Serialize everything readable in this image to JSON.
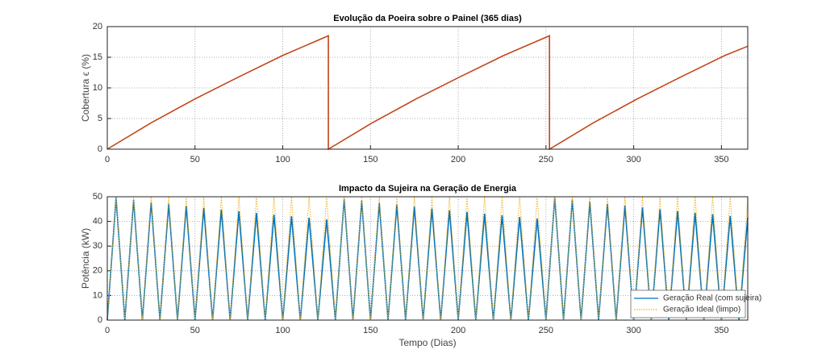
{
  "chart_data": [
    {
      "type": "line",
      "title": "Evolução da Poeira sobre o Painel (365 dias)",
      "y_label": "Cobertura ϵ (%)",
      "x": [
        0,
        25,
        50,
        75,
        100,
        126,
        126,
        151,
        176,
        201,
        226,
        252,
        252,
        277,
        302,
        327,
        352,
        365
      ],
      "series": [
        {
          "color": "#c1461b",
          "values": [
            0,
            4.3,
            8.2,
            11.8,
            15.3,
            18.5,
            0,
            4.3,
            8.2,
            11.8,
            15.3,
            18.5,
            0,
            4.3,
            8.2,
            11.8,
            15.3,
            16.8
          ]
        }
      ],
      "xlim": [
        0,
        365
      ],
      "xticks": [
        0,
        50,
        100,
        150,
        200,
        250,
        300,
        350
      ],
      "ylim": [
        0,
        20
      ],
      "yticks": [
        0,
        5,
        10,
        15,
        20
      ],
      "grid": true
    },
    {
      "type": "line",
      "title": "Impacto da Sujeira na Geração de Energia",
      "y_label": "Potência (kW)",
      "x_label": "Tempo (Dias)",
      "x": [
        0,
        5,
        10,
        15,
        20,
        25,
        30,
        35,
        40,
        45,
        50,
        55,
        60,
        65,
        70,
        75,
        80,
        85,
        90,
        95,
        100,
        105,
        110,
        115,
        120,
        125,
        130,
        135,
        140,
        145,
        150,
        155,
        160,
        165,
        170,
        175,
        180,
        185,
        190,
        195,
        200,
        205,
        210,
        215,
        220,
        225,
        230,
        235,
        240,
        245,
        250,
        255,
        260,
        265,
        270,
        275,
        280,
        285,
        290,
        295,
        300,
        305,
        310,
        315,
        320,
        325,
        330,
        335,
        340,
        345,
        350,
        355,
        360,
        365
      ],
      "series": [
        {
          "name": "Geração Real (com sujeira)",
          "color": "#0072bd",
          "dash": false,
          "values": [
            0,
            49.6,
            0,
            48.7,
            0,
            47.9,
            0,
            47.1,
            0,
            46.3,
            0,
            45.5,
            0,
            44.8,
            0,
            44.1,
            0,
            43.4,
            0,
            42.7,
            0,
            42.1,
            0,
            41.5,
            0,
            40.8,
            0,
            49.2,
            0,
            48.4,
            0,
            47.5,
            0,
            46.7,
            0,
            46.0,
            0,
            45.2,
            0,
            44.5,
            0,
            43.8,
            0,
            43.1,
            0,
            42.5,
            0,
            41.8,
            0,
            41.2,
            0,
            49.7,
            0,
            48.9,
            0,
            48.0,
            0,
            47.2,
            0,
            46.4,
            0,
            45.7,
            0,
            44.9,
            0,
            44.2,
            0,
            43.5,
            0,
            42.9,
            0,
            42.2,
            0,
            41.6
          ]
        },
        {
          "name": "Geração Ideal (limpo)",
          "color": "#edb120",
          "dash": true,
          "values": [
            0,
            50,
            0,
            50,
            0,
            50,
            0,
            50,
            0,
            50,
            0,
            50,
            0,
            50,
            0,
            50,
            0,
            50,
            0,
            50,
            0,
            50,
            0,
            50,
            0,
            50,
            0,
            50,
            0,
            50,
            0,
            50,
            0,
            50,
            0,
            50,
            0,
            50,
            0,
            50,
            0,
            50,
            0,
            50,
            0,
            50,
            0,
            50,
            0,
            50,
            0,
            50,
            0,
            50,
            0,
            50,
            0,
            50,
            0,
            50,
            0,
            50,
            0,
            50,
            0,
            50,
            0,
            50,
            0,
            50,
            0,
            50,
            0,
            50
          ]
        }
      ],
      "xlim": [
        0,
        365
      ],
      "xticks": [
        0,
        50,
        100,
        150,
        200,
        250,
        300,
        350
      ],
      "ylim": [
        0,
        50
      ],
      "yticks": [
        0,
        10,
        20,
        30,
        40,
        50
      ],
      "grid": true,
      "legend": "lower right"
    }
  ]
}
